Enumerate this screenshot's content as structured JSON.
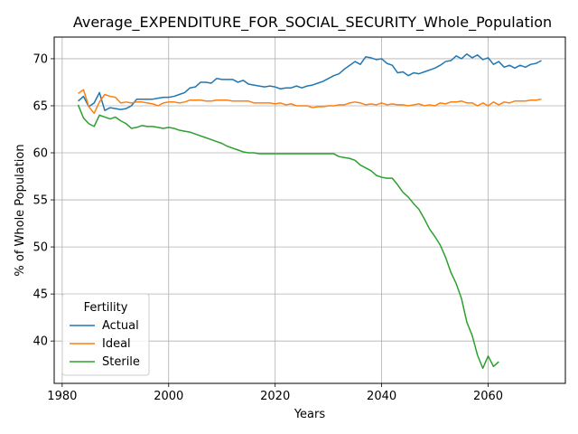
{
  "chart_data": {
    "type": "line",
    "title": "Average_EXPENDITURE_FOR_SOCIAL_SECURITY_Whole_Population",
    "xlabel": "Years",
    "ylabel": "% of Whole Population",
    "xlim": [
      1978.5,
      2074.5
    ],
    "ylim": [
      35.5,
      72.3
    ],
    "xticks": [
      1980,
      2000,
      2020,
      2040,
      2060
    ],
    "yticks": [
      40,
      45,
      50,
      55,
      60,
      65,
      70
    ],
    "grid": true,
    "legend": {
      "title": "Fertility",
      "placement": "bottom-left"
    },
    "series": [
      {
        "name": "Actual",
        "color": "#1f77b4",
        "x": [
          1983,
          1984,
          1985,
          1986,
          1987,
          1988,
          1989,
          1990,
          1991,
          1992,
          1993,
          1994,
          1995,
          1996,
          1997,
          1998,
          1999,
          2000,
          2001,
          2002,
          2003,
          2004,
          2005,
          2006,
          2007,
          2008,
          2009,
          2010,
          2011,
          2012,
          2013,
          2014,
          2015,
          2016,
          2017,
          2018,
          2019,
          2020,
          2021,
          2022,
          2023,
          2024,
          2025,
          2026,
          2027,
          2028,
          2029,
          2030,
          2031,
          2032,
          2033,
          2034,
          2035,
          2036,
          2037,
          2038,
          2039,
          2040,
          2041,
          2042,
          2043,
          2044,
          2045,
          2046,
          2047,
          2048,
          2049,
          2050,
          2051,
          2052,
          2053,
          2054,
          2055,
          2056,
          2057,
          2058,
          2059,
          2060,
          2061,
          2062,
          2063,
          2064,
          2065,
          2066,
          2067,
          2068,
          2069,
          2070
        ],
        "y": [
          65.5,
          66.0,
          64.9,
          65.3,
          66.4,
          64.5,
          64.8,
          64.7,
          64.6,
          64.7,
          65.0,
          65.7,
          65.7,
          65.7,
          65.7,
          65.8,
          65.9,
          65.9,
          66.0,
          66.2,
          66.4,
          66.9,
          67.0,
          67.5,
          67.5,
          67.4,
          67.9,
          67.8,
          67.8,
          67.8,
          67.5,
          67.7,
          67.3,
          67.2,
          67.1,
          67.0,
          67.1,
          67.0,
          66.8,
          66.9,
          66.9,
          67.1,
          66.9,
          67.1,
          67.2,
          67.4,
          67.6,
          67.9,
          68.2,
          68.4,
          68.9,
          69.3,
          69.7,
          69.4,
          70.2,
          70.1,
          69.9,
          70.0,
          69.5,
          69.3,
          68.5,
          68.6,
          68.2,
          68.5,
          68.4,
          68.6,
          68.8,
          69.0,
          69.3,
          69.7,
          69.8,
          70.3,
          70.0,
          70.5,
          70.1,
          70.4,
          69.9,
          70.1,
          69.4,
          69.7,
          69.1,
          69.3,
          69.0,
          69.3,
          69.1,
          69.4,
          69.5,
          69.8
        ]
      },
      {
        "name": "Ideal",
        "color": "#ff7f0e",
        "x": [
          1983,
          1984,
          1985,
          1986,
          1987,
          1988,
          1989,
          1990,
          1991,
          1992,
          1993,
          1994,
          1995,
          1996,
          1997,
          1998,
          1999,
          2000,
          2001,
          2002,
          2003,
          2004,
          2005,
          2006,
          2007,
          2008,
          2009,
          2010,
          2011,
          2012,
          2013,
          2014,
          2015,
          2016,
          2017,
          2018,
          2019,
          2020,
          2021,
          2022,
          2023,
          2024,
          2025,
          2026,
          2027,
          2028,
          2029,
          2030,
          2031,
          2032,
          2033,
          2034,
          2035,
          2036,
          2037,
          2038,
          2039,
          2040,
          2041,
          2042,
          2043,
          2044,
          2045,
          2046,
          2047,
          2048,
          2049,
          2050,
          2051,
          2052,
          2053,
          2054,
          2055,
          2056,
          2057,
          2058,
          2059,
          2060,
          2061,
          2062,
          2063,
          2064,
          2065,
          2066,
          2067,
          2068,
          2069,
          2070
        ],
        "y": [
          66.3,
          66.7,
          64.9,
          64.2,
          65.4,
          66.2,
          66.0,
          65.9,
          65.3,
          65.4,
          65.3,
          65.4,
          65.4,
          65.3,
          65.2,
          65.0,
          65.3,
          65.4,
          65.4,
          65.3,
          65.4,
          65.6,
          65.6,
          65.6,
          65.5,
          65.5,
          65.6,
          65.6,
          65.6,
          65.5,
          65.5,
          65.5,
          65.5,
          65.3,
          65.3,
          65.3,
          65.3,
          65.2,
          65.3,
          65.1,
          65.2,
          65.0,
          65.0,
          65.0,
          64.8,
          64.9,
          64.9,
          65.0,
          65.0,
          65.1,
          65.1,
          65.3,
          65.4,
          65.3,
          65.1,
          65.2,
          65.1,
          65.3,
          65.1,
          65.2,
          65.1,
          65.1,
          65.0,
          65.1,
          65.2,
          65.0,
          65.1,
          65.0,
          65.3,
          65.2,
          65.4,
          65.4,
          65.5,
          65.3,
          65.3,
          65.0,
          65.3,
          65.0,
          65.4,
          65.1,
          65.4,
          65.3,
          65.5,
          65.5,
          65.5,
          65.6,
          65.6,
          65.7
        ]
      },
      {
        "name": "Sterile",
        "color": "#2ca02c",
        "x": [
          1983,
          1984,
          1985,
          1986,
          1987,
          1988,
          1989,
          1990,
          1991,
          1992,
          1993,
          1994,
          1995,
          1996,
          1997,
          1998,
          1999,
          2000,
          2001,
          2002,
          2003,
          2004,
          2005,
          2006,
          2007,
          2008,
          2009,
          2010,
          2011,
          2012,
          2013,
          2014,
          2015,
          2016,
          2017,
          2018,
          2019,
          2020,
          2021,
          2022,
          2023,
          2024,
          2025,
          2026,
          2027,
          2028,
          2029,
          2030,
          2031,
          2032,
          2033,
          2034,
          2035,
          2036,
          2037,
          2038,
          2039,
          2040,
          2041,
          2042,
          2043,
          2044,
          2045,
          2046,
          2047,
          2048,
          2049,
          2050,
          2051,
          2052,
          2053,
          2054,
          2055,
          2056,
          2057,
          2058,
          2059,
          2060,
          2061,
          2062
        ],
        "y": [
          65.1,
          63.7,
          63.1,
          62.8,
          64.0,
          63.8,
          63.6,
          63.8,
          63.4,
          63.1,
          62.6,
          62.7,
          62.9,
          62.8,
          62.8,
          62.7,
          62.6,
          62.7,
          62.6,
          62.4,
          62.3,
          62.2,
          62.0,
          61.8,
          61.6,
          61.4,
          61.2,
          61.0,
          60.7,
          60.5,
          60.3,
          60.1,
          60.0,
          60.0,
          59.9,
          59.9,
          59.9,
          59.9,
          59.9,
          59.9,
          59.9,
          59.9,
          59.9,
          59.9,
          59.9,
          59.9,
          59.9,
          59.9,
          59.9,
          59.6,
          59.5,
          59.4,
          59.2,
          58.7,
          58.4,
          58.1,
          57.6,
          57.4,
          57.3,
          57.3,
          56.6,
          55.8,
          55.3,
          54.6,
          54.0,
          53.0,
          51.9,
          51.1,
          50.2,
          48.9,
          47.3,
          46.1,
          44.5,
          42.0,
          40.6,
          38.5,
          37.1,
          38.4,
          37.3,
          37.8
        ]
      }
    ]
  }
}
